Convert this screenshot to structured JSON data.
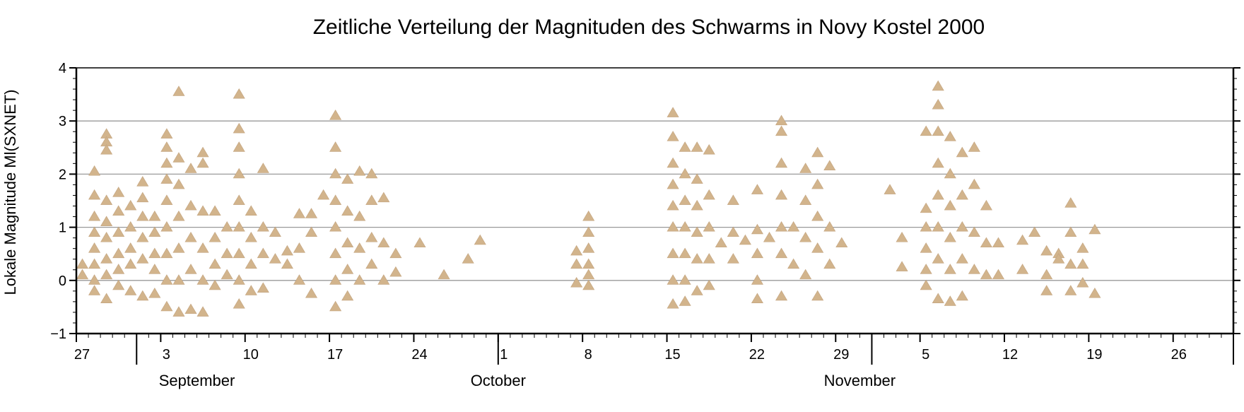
{
  "chart_data": {
    "type": "scatter",
    "title": "Zeitliche Verteilung der Magnituden des Schwarms in Novy Kostel 2000",
    "xlabel": "",
    "ylabel": "Lokale Magnitude Ml(SXNET)",
    "x_axis_type": "date",
    "xlim": [
      "2000-08-27",
      "2000-12-01"
    ],
    "ylim": [
      -1,
      4
    ],
    "yticks": [
      -1,
      0,
      1,
      2,
      3,
      4
    ],
    "grid_y": true,
    "grid_x": false,
    "marker": "triangle-up",
    "marker_color": "#d2b48c",
    "date_ticks": [
      {
        "date": "2000-08-27",
        "label": "27"
      },
      {
        "date": "2000-09-03",
        "label": "3"
      },
      {
        "date": "2000-09-10",
        "label": "10"
      },
      {
        "date": "2000-09-17",
        "label": "17"
      },
      {
        "date": "2000-09-24",
        "label": "24"
      },
      {
        "date": "2000-10-01",
        "label": "1"
      },
      {
        "date": "2000-10-08",
        "label": "8"
      },
      {
        "date": "2000-10-15",
        "label": "15"
      },
      {
        "date": "2000-10-22",
        "label": "22"
      },
      {
        "date": "2000-10-29",
        "label": "29"
      },
      {
        "date": "2000-11-05",
        "label": "5"
      },
      {
        "date": "2000-11-12",
        "label": "12"
      },
      {
        "date": "2000-11-19",
        "label": "19"
      },
      {
        "date": "2000-11-26",
        "label": "26"
      }
    ],
    "month_boundaries": [
      "2000-09-01",
      "2000-10-01",
      "2000-11-01",
      "2000-12-01"
    ],
    "month_labels": [
      {
        "label": "September",
        "date": "2000-09-06"
      },
      {
        "label": "October",
        "date": "2000-10-01"
      },
      {
        "label": "November",
        "date": "2000-10-31"
      }
    ],
    "series": [
      {
        "points": [
          [
            "2000-08-27",
            0.3
          ],
          [
            "2000-08-27",
            0.1
          ],
          [
            "2000-08-28",
            2.05
          ],
          [
            "2000-08-28",
            1.6
          ],
          [
            "2000-08-28",
            1.2
          ],
          [
            "2000-08-28",
            0.9
          ],
          [
            "2000-08-28",
            0.6
          ],
          [
            "2000-08-28",
            0.3
          ],
          [
            "2000-08-28",
            0.0
          ],
          [
            "2000-08-28",
            -0.2
          ],
          [
            "2000-08-29",
            2.75
          ],
          [
            "2000-08-29",
            2.6
          ],
          [
            "2000-08-29",
            2.45
          ],
          [
            "2000-08-29",
            1.5
          ],
          [
            "2000-08-29",
            1.1
          ],
          [
            "2000-08-29",
            0.8
          ],
          [
            "2000-08-29",
            0.4
          ],
          [
            "2000-08-29",
            0.1
          ],
          [
            "2000-08-29",
            -0.35
          ],
          [
            "2000-08-30",
            1.65
          ],
          [
            "2000-08-30",
            1.3
          ],
          [
            "2000-08-30",
            0.9
          ],
          [
            "2000-08-30",
            0.5
          ],
          [
            "2000-08-30",
            0.2
          ],
          [
            "2000-08-30",
            -0.1
          ],
          [
            "2000-08-31",
            1.4
          ],
          [
            "2000-08-31",
            1.0
          ],
          [
            "2000-08-31",
            0.6
          ],
          [
            "2000-08-31",
            0.3
          ],
          [
            "2000-08-31",
            -0.2
          ],
          [
            "2000-09-01",
            1.85
          ],
          [
            "2000-09-01",
            1.55
          ],
          [
            "2000-09-01",
            1.2
          ],
          [
            "2000-09-01",
            0.8
          ],
          [
            "2000-09-01",
            0.4
          ],
          [
            "2000-09-01",
            -0.3
          ],
          [
            "2000-09-02",
            1.2
          ],
          [
            "2000-09-02",
            0.9
          ],
          [
            "2000-09-02",
            0.5
          ],
          [
            "2000-09-02",
            0.2
          ],
          [
            "2000-09-02",
            -0.25
          ],
          [
            "2000-09-03",
            2.75
          ],
          [
            "2000-09-03",
            2.5
          ],
          [
            "2000-09-03",
            2.2
          ],
          [
            "2000-09-03",
            1.9
          ],
          [
            "2000-09-03",
            1.5
          ],
          [
            "2000-09-03",
            1.0
          ],
          [
            "2000-09-03",
            0.5
          ],
          [
            "2000-09-03",
            0.0
          ],
          [
            "2000-09-03",
            -0.5
          ],
          [
            "2000-09-04",
            3.55
          ],
          [
            "2000-09-04",
            2.3
          ],
          [
            "2000-09-04",
            1.8
          ],
          [
            "2000-09-04",
            1.2
          ],
          [
            "2000-09-04",
            0.6
          ],
          [
            "2000-09-04",
            0.0
          ],
          [
            "2000-09-04",
            -0.6
          ],
          [
            "2000-09-05",
            2.1
          ],
          [
            "2000-09-05",
            1.4
          ],
          [
            "2000-09-05",
            0.8
          ],
          [
            "2000-09-05",
            0.2
          ],
          [
            "2000-09-05",
            -0.55
          ],
          [
            "2000-09-06",
            2.4
          ],
          [
            "2000-09-06",
            2.2
          ],
          [
            "2000-09-06",
            1.3
          ],
          [
            "2000-09-06",
            0.6
          ],
          [
            "2000-09-06",
            0.0
          ],
          [
            "2000-09-06",
            -0.6
          ],
          [
            "2000-09-07",
            1.3
          ],
          [
            "2000-09-07",
            0.8
          ],
          [
            "2000-09-07",
            0.3
          ],
          [
            "2000-09-07",
            -0.1
          ],
          [
            "2000-09-08",
            1.0
          ],
          [
            "2000-09-08",
            0.5
          ],
          [
            "2000-09-08",
            0.1
          ],
          [
            "2000-09-09",
            3.5
          ],
          [
            "2000-09-09",
            2.85
          ],
          [
            "2000-09-09",
            2.5
          ],
          [
            "2000-09-09",
            2.0
          ],
          [
            "2000-09-09",
            1.5
          ],
          [
            "2000-09-09",
            1.0
          ],
          [
            "2000-09-09",
            0.5
          ],
          [
            "2000-09-09",
            0.0
          ],
          [
            "2000-09-09",
            -0.45
          ],
          [
            "2000-09-10",
            1.3
          ],
          [
            "2000-09-10",
            0.8
          ],
          [
            "2000-09-10",
            0.3
          ],
          [
            "2000-09-10",
            -0.2
          ],
          [
            "2000-09-11",
            2.1
          ],
          [
            "2000-09-11",
            1.0
          ],
          [
            "2000-09-11",
            0.5
          ],
          [
            "2000-09-11",
            -0.15
          ],
          [
            "2000-09-12",
            0.9
          ],
          [
            "2000-09-12",
            0.4
          ],
          [
            "2000-09-13",
            0.55
          ],
          [
            "2000-09-13",
            0.3
          ],
          [
            "2000-09-14",
            1.25
          ],
          [
            "2000-09-14",
            0.6
          ],
          [
            "2000-09-14",
            0.0
          ],
          [
            "2000-09-15",
            1.25
          ],
          [
            "2000-09-15",
            0.9
          ],
          [
            "2000-09-15",
            -0.25
          ],
          [
            "2000-09-16",
            1.6
          ],
          [
            "2000-09-17",
            3.1
          ],
          [
            "2000-09-17",
            2.5
          ],
          [
            "2000-09-17",
            2.0
          ],
          [
            "2000-09-17",
            1.5
          ],
          [
            "2000-09-17",
            1.0
          ],
          [
            "2000-09-17",
            0.5
          ],
          [
            "2000-09-17",
            0.0
          ],
          [
            "2000-09-17",
            -0.5
          ],
          [
            "2000-09-18",
            1.9
          ],
          [
            "2000-09-18",
            1.3
          ],
          [
            "2000-09-18",
            0.7
          ],
          [
            "2000-09-18",
            0.2
          ],
          [
            "2000-09-18",
            -0.3
          ],
          [
            "2000-09-19",
            2.05
          ],
          [
            "2000-09-19",
            1.2
          ],
          [
            "2000-09-19",
            0.6
          ],
          [
            "2000-09-19",
            0.0
          ],
          [
            "2000-09-20",
            2.0
          ],
          [
            "2000-09-20",
            1.5
          ],
          [
            "2000-09-20",
            0.8
          ],
          [
            "2000-09-20",
            0.3
          ],
          [
            "2000-09-21",
            1.55
          ],
          [
            "2000-09-21",
            0.7
          ],
          [
            "2000-09-21",
            0.0
          ],
          [
            "2000-09-22",
            0.5
          ],
          [
            "2000-09-22",
            0.15
          ],
          [
            "2000-09-24",
            0.7
          ],
          [
            "2000-09-26",
            0.1
          ],
          [
            "2000-09-28",
            0.4
          ],
          [
            "2000-09-29",
            0.75
          ],
          [
            "2000-10-07",
            0.55
          ],
          [
            "2000-10-07",
            0.3
          ],
          [
            "2000-10-07",
            -0.05
          ],
          [
            "2000-10-08",
            1.2
          ],
          [
            "2000-10-08",
            0.9
          ],
          [
            "2000-10-08",
            0.6
          ],
          [
            "2000-10-08",
            0.3
          ],
          [
            "2000-10-08",
            0.1
          ],
          [
            "2000-10-08",
            -0.1
          ],
          [
            "2000-10-15",
            3.15
          ],
          [
            "2000-10-15",
            2.7
          ],
          [
            "2000-10-15",
            2.2
          ],
          [
            "2000-10-15",
            1.8
          ],
          [
            "2000-10-15",
            1.4
          ],
          [
            "2000-10-15",
            1.0
          ],
          [
            "2000-10-15",
            0.5
          ],
          [
            "2000-10-15",
            0.0
          ],
          [
            "2000-10-15",
            -0.45
          ],
          [
            "2000-10-16",
            2.5
          ],
          [
            "2000-10-16",
            2.0
          ],
          [
            "2000-10-16",
            1.5
          ],
          [
            "2000-10-16",
            1.0
          ],
          [
            "2000-10-16",
            0.5
          ],
          [
            "2000-10-16",
            0.0
          ],
          [
            "2000-10-16",
            -0.4
          ],
          [
            "2000-10-17",
            2.5
          ],
          [
            "2000-10-17",
            1.9
          ],
          [
            "2000-10-17",
            1.4
          ],
          [
            "2000-10-17",
            0.9
          ],
          [
            "2000-10-17",
            0.4
          ],
          [
            "2000-10-17",
            -0.2
          ],
          [
            "2000-10-18",
            2.45
          ],
          [
            "2000-10-18",
            1.6
          ],
          [
            "2000-10-18",
            1.0
          ],
          [
            "2000-10-18",
            0.4
          ],
          [
            "2000-10-18",
            -0.1
          ],
          [
            "2000-10-19",
            0.7
          ],
          [
            "2000-10-20",
            1.5
          ],
          [
            "2000-10-20",
            0.9
          ],
          [
            "2000-10-20",
            0.4
          ],
          [
            "2000-10-21",
            0.75
          ],
          [
            "2000-10-22",
            1.7
          ],
          [
            "2000-10-22",
            0.95
          ],
          [
            "2000-10-22",
            0.5
          ],
          [
            "2000-10-22",
            0.0
          ],
          [
            "2000-10-22",
            -0.35
          ],
          [
            "2000-10-23",
            0.8
          ],
          [
            "2000-10-24",
            3.0
          ],
          [
            "2000-10-24",
            2.8
          ],
          [
            "2000-10-24",
            2.2
          ],
          [
            "2000-10-24",
            1.6
          ],
          [
            "2000-10-24",
            1.0
          ],
          [
            "2000-10-24",
            0.5
          ],
          [
            "2000-10-24",
            -0.3
          ],
          [
            "2000-10-25",
            1.0
          ],
          [
            "2000-10-25",
            0.3
          ],
          [
            "2000-10-26",
            2.1
          ],
          [
            "2000-10-26",
            1.5
          ],
          [
            "2000-10-26",
            0.8
          ],
          [
            "2000-10-26",
            0.1
          ],
          [
            "2000-10-27",
            2.4
          ],
          [
            "2000-10-27",
            1.8
          ],
          [
            "2000-10-27",
            1.2
          ],
          [
            "2000-10-27",
            0.6
          ],
          [
            "2000-10-27",
            -0.3
          ],
          [
            "2000-10-28",
            2.15
          ],
          [
            "2000-10-28",
            1.0
          ],
          [
            "2000-10-28",
            0.3
          ],
          [
            "2000-10-29",
            0.7
          ],
          [
            "2000-11-02",
            1.7
          ],
          [
            "2000-11-03",
            0.8
          ],
          [
            "2000-11-03",
            0.25
          ],
          [
            "2000-11-05",
            2.8
          ],
          [
            "2000-11-05",
            1.35
          ],
          [
            "2000-11-05",
            1.0
          ],
          [
            "2000-11-05",
            0.6
          ],
          [
            "2000-11-05",
            0.2
          ],
          [
            "2000-11-05",
            -0.1
          ],
          [
            "2000-11-06",
            3.65
          ],
          [
            "2000-11-06",
            3.3
          ],
          [
            "2000-11-06",
            2.8
          ],
          [
            "2000-11-06",
            2.2
          ],
          [
            "2000-11-06",
            1.6
          ],
          [
            "2000-11-06",
            1.0
          ],
          [
            "2000-11-06",
            0.4
          ],
          [
            "2000-11-06",
            -0.35
          ],
          [
            "2000-11-07",
            2.7
          ],
          [
            "2000-11-07",
            2.0
          ],
          [
            "2000-11-07",
            1.4
          ],
          [
            "2000-11-07",
            0.8
          ],
          [
            "2000-11-07",
            0.2
          ],
          [
            "2000-11-07",
            -0.4
          ],
          [
            "2000-11-08",
            2.4
          ],
          [
            "2000-11-08",
            1.6
          ],
          [
            "2000-11-08",
            1.0
          ],
          [
            "2000-11-08",
            0.4
          ],
          [
            "2000-11-08",
            -0.3
          ],
          [
            "2000-11-09",
            2.5
          ],
          [
            "2000-11-09",
            1.8
          ],
          [
            "2000-11-09",
            0.9
          ],
          [
            "2000-11-09",
            0.2
          ],
          [
            "2000-11-10",
            1.4
          ],
          [
            "2000-11-10",
            0.7
          ],
          [
            "2000-11-10",
            0.1
          ],
          [
            "2000-11-11",
            0.7
          ],
          [
            "2000-11-11",
            0.1
          ],
          [
            "2000-11-13",
            0.75
          ],
          [
            "2000-11-13",
            0.2
          ],
          [
            "2000-11-14",
            0.9
          ],
          [
            "2000-11-15",
            0.55
          ],
          [
            "2000-11-15",
            0.1
          ],
          [
            "2000-11-15",
            -0.2
          ],
          [
            "2000-11-16",
            0.5
          ],
          [
            "2000-11-16",
            0.4
          ],
          [
            "2000-11-17",
            1.45
          ],
          [
            "2000-11-17",
            0.9
          ],
          [
            "2000-11-17",
            0.3
          ],
          [
            "2000-11-17",
            -0.2
          ],
          [
            "2000-11-18",
            0.6
          ],
          [
            "2000-11-18",
            0.3
          ],
          [
            "2000-11-18",
            -0.05
          ],
          [
            "2000-11-19",
            0.95
          ],
          [
            "2000-11-19",
            -0.25
          ]
        ]
      }
    ]
  }
}
